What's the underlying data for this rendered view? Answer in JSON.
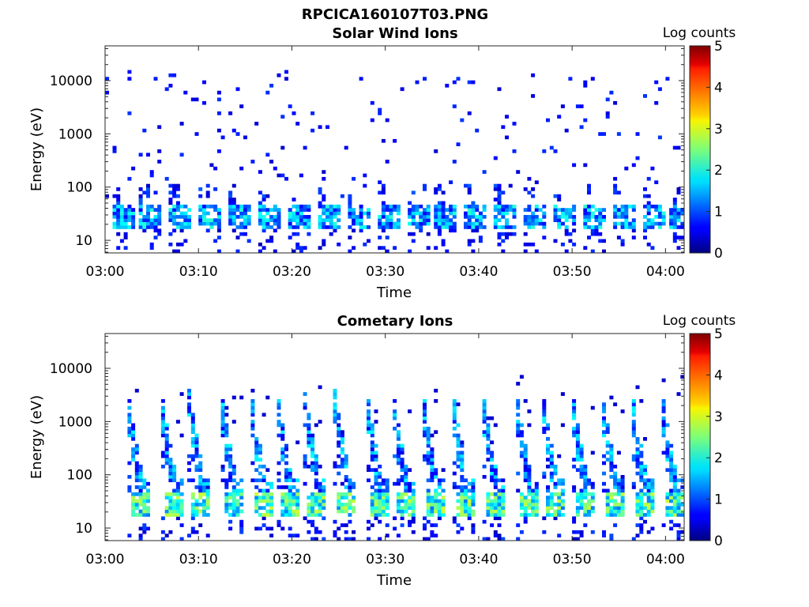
{
  "figure": {
    "filename": "RPCICA160107T03.PNG",
    "colorbar_label": "Log counts"
  },
  "chart_data": [
    {
      "type": "heatmap",
      "title": "Solar Wind Ions",
      "xlabel": "Time",
      "ylabel": "Energy (eV)",
      "x_ticks": [
        "03:00",
        "03:10",
        "03:20",
        "03:30",
        "03:40",
        "03:50",
        "04:00"
      ],
      "x_range": [
        "03:00",
        "04:02"
      ],
      "y_scale": "log",
      "y_ticks": [
        "10",
        "100",
        "1000",
        "10000"
      ],
      "y_range": [
        5.8,
        45000
      ],
      "colorbar": {
        "label": "Log counts",
        "range": [
          0,
          5
        ],
        "ticks": [
          "0",
          "1",
          "2",
          "3",
          "4",
          "5"
        ],
        "colormap": "jet"
      },
      "scan_starts_min": [
        0.5,
        3.6,
        6.8,
        10.0,
        13.1,
        16.3,
        19.4,
        22.6,
        25.8,
        28.9,
        32.1,
        35.2,
        38.4,
        41.5,
        44.7,
        47.8,
        51.0,
        54.1,
        57.3,
        60.4
      ],
      "description": "sparse low-count (log counts 0-1) speckle at 100-10000 eV; periodic bands of 0.5-2 log counts near 20-40 eV"
    },
    {
      "type": "heatmap",
      "title": "Cometary Ions",
      "xlabel": "Time",
      "ylabel": "Energy (eV)",
      "x_ticks": [
        "03:00",
        "03:10",
        "03:20",
        "03:30",
        "03:40",
        "03:50",
        "04:00"
      ],
      "x_range": [
        "03:00",
        "04:02"
      ],
      "y_scale": "log",
      "y_ticks": [
        "10",
        "100",
        "1000",
        "10000"
      ],
      "y_range": [
        5.8,
        45000
      ],
      "colorbar": {
        "label": "Log counts",
        "range": [
          0,
          5
        ],
        "ticks": [
          "0",
          "1",
          "2",
          "3",
          "4",
          "5"
        ],
        "colormap": "jet"
      },
      "scan_starts_min": [
        2.2,
        5.8,
        8.8,
        12.2,
        15.4,
        18.2,
        21.2,
        24.4,
        27.8,
        30.6,
        33.8,
        37.0,
        40.2,
        43.8,
        46.6,
        49.8,
        53.0,
        56.2,
        59.4
      ],
      "description": "periodic dispersed curtains of 0.5-2 log counts falling from ~1000-2000 eV to ~40 eV; peaks of 2-3 log counts near 20-40 eV"
    }
  ]
}
